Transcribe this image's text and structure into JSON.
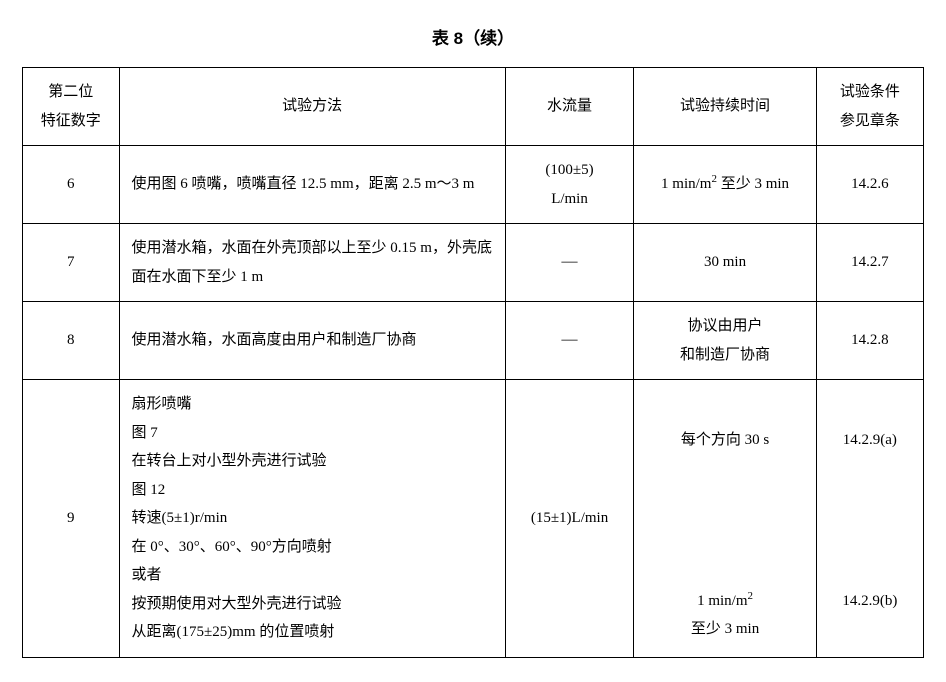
{
  "title": "表 8（续）",
  "headers": {
    "col1_line1": "第二位",
    "col1_line2": "特征数字",
    "col2": "试验方法",
    "col3": "水流量",
    "col4": "试验持续时间",
    "col5_line1": "试验条件",
    "col5_line2": "参见章条"
  },
  "rows": {
    "r6": {
      "num": "6",
      "method": "使用图 6 喷嘴，喷嘴直径 12.5 mm，距离 2.5 m～3 m",
      "flow_line1": "(100±5)",
      "flow_line2": "L/min",
      "duration_html": "1 min/m<sup>2</sup> 至少 3 min",
      "ref": "14.2.6"
    },
    "r7": {
      "num": "7",
      "method": "使用潜水箱，水面在外壳顶部以上至少 0.15 m，外壳底面在水面下至少 1 m",
      "flow": "—",
      "duration": "30 min",
      "ref": "14.2.7"
    },
    "r8": {
      "num": "8",
      "method": "使用潜水箱，水面高度由用户和制造厂协商",
      "flow": "—",
      "duration_line1": "协议由用户",
      "duration_line2": "和制造厂协商",
      "ref": "14.2.8"
    },
    "r9": {
      "num": "9",
      "method_l1": "扇形喷嘴",
      "method_l2": "图 7",
      "method_l3": "在转台上对小型外壳进行试验",
      "method_l4": "图 12",
      "method_l5": "转速(5±1)r/min",
      "method_l6": "在 0°、30°、60°、90°方向喷射",
      "method_l7": "或者",
      "method_l8": "按预期使用对大型外壳进行试验",
      "method_l9": "从距离(175±25)mm 的位置喷射",
      "flow": "(15±1)L/min",
      "duration_a": "每个方向 30 s",
      "duration_b_html": "1 min/m<sup>2</sup>",
      "duration_c": "至少 3 min",
      "ref_a": "14.2.9(a)",
      "ref_b": "14.2.9(b)"
    }
  }
}
